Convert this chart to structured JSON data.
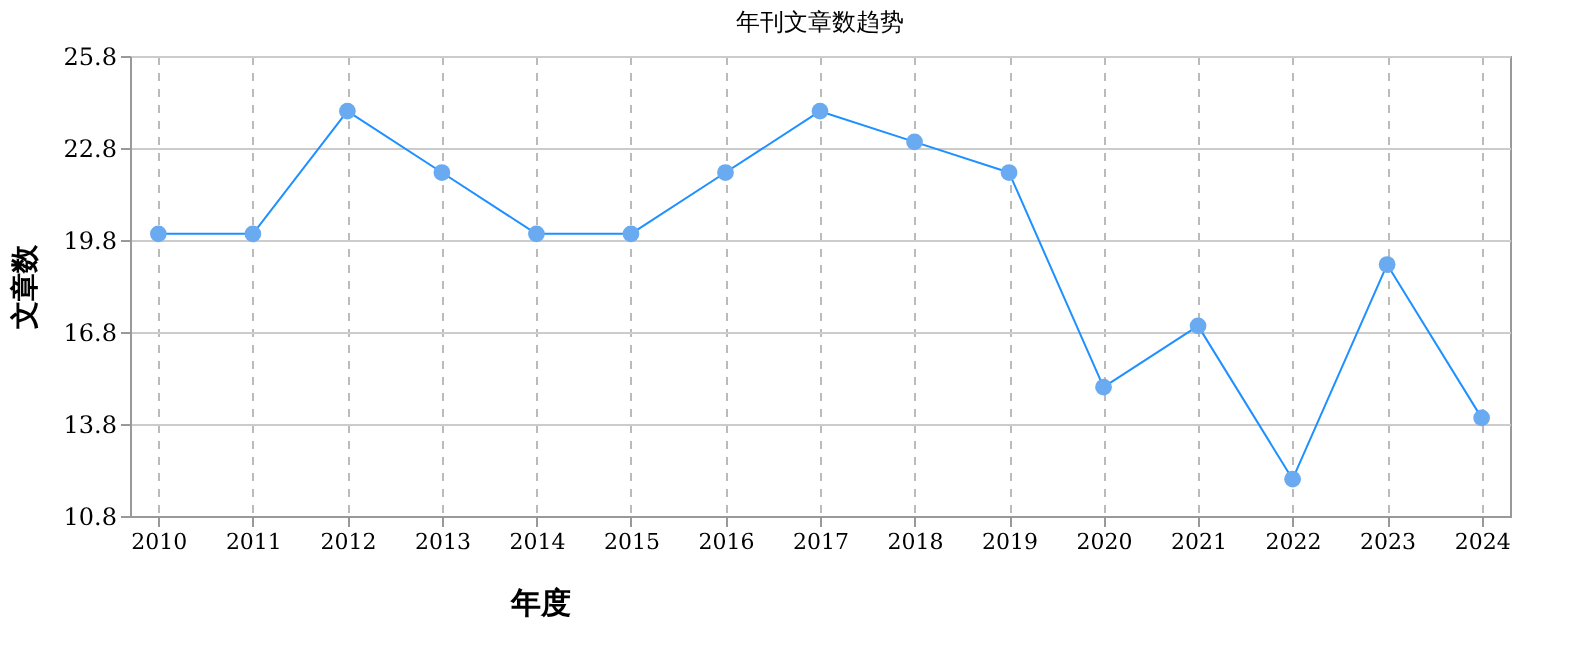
{
  "chart_data": {
    "type": "line",
    "title": "年刊文章数趋势",
    "xlabel": "年度",
    "ylabel": "文章数",
    "categories": [
      "2010",
      "2011",
      "2012",
      "2013",
      "2014",
      "2015",
      "2016",
      "2017",
      "2018",
      "2019",
      "2020",
      "2021",
      "2022",
      "2023",
      "2024"
    ],
    "series": [
      {
        "color": "#1e90ff",
        "values": [
          20,
          20,
          24,
          22,
          20,
          20,
          22,
          24,
          23,
          22,
          15,
          17,
          12,
          19,
          14
        ]
      }
    ],
    "ylim": [
      10.8,
      25.8
    ],
    "yticks": [
      10.8,
      13.8,
      16.8,
      19.8,
      22.8,
      25.8
    ],
    "grid": true,
    "marker": "circle",
    "line_style": "solid"
  }
}
